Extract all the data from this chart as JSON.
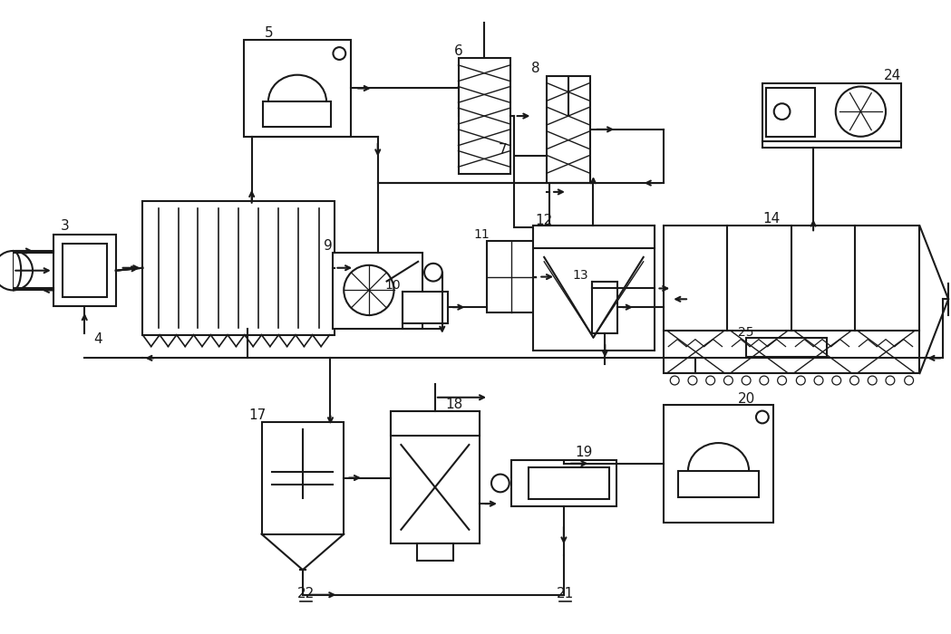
{
  "bg_color": "#ffffff",
  "lc": "#1a1a1a",
  "lw": 1.5,
  "fig_w": 10.49,
  "fig_h": 7.0,
  "dpi": 100
}
